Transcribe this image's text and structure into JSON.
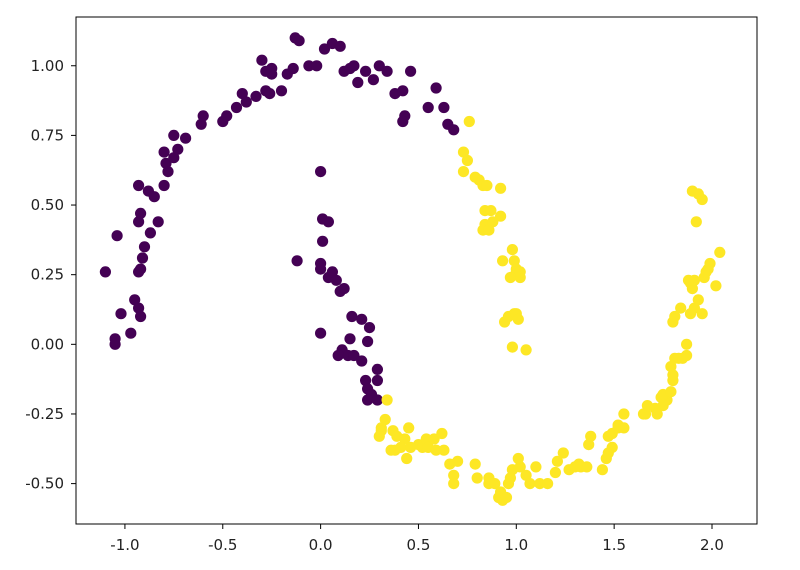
{
  "chart_data": {
    "type": "scatter",
    "title": "",
    "xlabel": "",
    "ylabel": "",
    "xlim": [
      -1.25,
      2.23
    ],
    "ylim": [
      -0.645,
      1.175
    ],
    "x_ticks": [
      -1.0,
      -0.5,
      0.0,
      0.5,
      1.0,
      1.5,
      2.0
    ],
    "x_tick_labels": [
      "-1.0",
      "-0.5",
      "0.0",
      "0.5",
      "1.0",
      "1.5",
      "2.0"
    ],
    "y_ticks": [
      -0.5,
      -0.25,
      0.0,
      0.25,
      0.5,
      0.75,
      1.0
    ],
    "y_tick_labels": [
      "-0.50",
      "-0.25",
      "0.00",
      "0.25",
      "0.50",
      "0.75",
      "1.00"
    ],
    "grid": false,
    "legend": "none",
    "colors": {
      "class0": "#440154",
      "class1": "#fde725"
    },
    "series": [
      {
        "color": "#440154",
        "points": [
          [
            -1.1,
            0.26
          ],
          [
            -1.04,
            0.39
          ],
          [
            -1.05,
            0.02
          ],
          [
            -1.05,
            0.0
          ],
          [
            -1.02,
            0.11
          ],
          [
            -0.97,
            0.04
          ],
          [
            -0.95,
            0.16
          ],
          [
            -0.93,
            0.13
          ],
          [
            -0.92,
            0.1
          ],
          [
            -0.93,
            0.26
          ],
          [
            -0.92,
            0.27
          ],
          [
            -0.91,
            0.31
          ],
          [
            -0.9,
            0.35
          ],
          [
            -0.93,
            0.44
          ],
          [
            -0.92,
            0.47
          ],
          [
            -0.87,
            0.4
          ],
          [
            -0.83,
            0.44
          ],
          [
            -0.93,
            0.57
          ],
          [
            -0.88,
            0.55
          ],
          [
            -0.85,
            0.53
          ],
          [
            -0.8,
            0.57
          ],
          [
            -0.78,
            0.62
          ],
          [
            -0.79,
            0.65
          ],
          [
            -0.8,
            0.69
          ],
          [
            -0.75,
            0.67
          ],
          [
            -0.73,
            0.7
          ],
          [
            -0.75,
            0.75
          ],
          [
            -0.69,
            0.74
          ],
          [
            -0.61,
            0.79
          ],
          [
            -0.6,
            0.82
          ],
          [
            -0.5,
            0.8
          ],
          [
            -0.48,
            0.82
          ],
          [
            -0.43,
            0.85
          ],
          [
            -0.4,
            0.9
          ],
          [
            -0.38,
            0.87
          ],
          [
            -0.33,
            0.89
          ],
          [
            -0.28,
            0.91
          ],
          [
            -0.26,
            0.9
          ],
          [
            -0.25,
            0.97
          ],
          [
            -0.3,
            1.02
          ],
          [
            -0.28,
            0.98
          ],
          [
            -0.25,
            0.99
          ],
          [
            -0.2,
            0.91
          ],
          [
            -0.17,
            0.97
          ],
          [
            -0.14,
            0.99
          ],
          [
            -0.13,
            1.1
          ],
          [
            -0.11,
            1.09
          ],
          [
            -0.06,
            1.0
          ],
          [
            -0.02,
            1.0
          ],
          [
            0.02,
            1.06
          ],
          [
            0.06,
            1.08
          ],
          [
            0.1,
            1.07
          ],
          [
            0.12,
            0.98
          ],
          [
            0.15,
            0.99
          ],
          [
            0.17,
            1.0
          ],
          [
            0.19,
            0.94
          ],
          [
            0.23,
            0.98
          ],
          [
            0.27,
            0.95
          ],
          [
            0.3,
            1.0
          ],
          [
            0.34,
            0.98
          ],
          [
            0.38,
            0.9
          ],
          [
            0.42,
            0.91
          ],
          [
            0.46,
            0.98
          ],
          [
            0.55,
            0.85
          ],
          [
            0.59,
            0.92
          ],
          [
            0.63,
            0.85
          ],
          [
            0.65,
            0.79
          ],
          [
            0.68,
            0.77
          ],
          [
            0.43,
            0.82
          ],
          [
            0.42,
            0.8
          ],
          [
            -0.12,
            0.3
          ],
          [
            0.0,
            0.62
          ],
          [
            0.01,
            0.45
          ],
          [
            0.04,
            0.44
          ],
          [
            0.01,
            0.37
          ],
          [
            0.0,
            0.27
          ],
          [
            0.04,
            0.24
          ],
          [
            0.0,
            0.29
          ],
          [
            0.06,
            0.26
          ],
          [
            0.08,
            0.23
          ],
          [
            0.1,
            0.19
          ],
          [
            0.12,
            0.2
          ],
          [
            0.16,
            0.1
          ],
          [
            0.21,
            0.09
          ],
          [
            0.25,
            0.06
          ],
          [
            0.24,
            0.01
          ],
          [
            0.15,
            0.02
          ],
          [
            0.11,
            -0.02
          ],
          [
            0.14,
            -0.04
          ],
          [
            0.09,
            -0.04
          ],
          [
            0.17,
            -0.04
          ],
          [
            0.21,
            -0.06
          ],
          [
            0.29,
            -0.09
          ],
          [
            0.29,
            -0.13
          ],
          [
            0.23,
            -0.13
          ],
          [
            0.24,
            -0.16
          ],
          [
            0.26,
            -0.18
          ],
          [
            0.24,
            -0.2
          ],
          [
            0.29,
            -0.2
          ],
          [
            0.0,
            0.04
          ]
        ]
      },
      {
        "color": "#fde725",
        "points": [
          [
            0.76,
            0.8
          ],
          [
            0.73,
            0.69
          ],
          [
            0.75,
            0.66
          ],
          [
            0.73,
            0.62
          ],
          [
            0.79,
            0.6
          ],
          [
            0.81,
            0.59
          ],
          [
            0.83,
            0.57
          ],
          [
            0.85,
            0.57
          ],
          [
            0.92,
            0.56
          ],
          [
            0.84,
            0.48
          ],
          [
            0.87,
            0.48
          ],
          [
            0.92,
            0.46
          ],
          [
            0.84,
            0.43
          ],
          [
            0.83,
            0.41
          ],
          [
            0.86,
            0.41
          ],
          [
            0.88,
            0.44
          ],
          [
            0.98,
            0.34
          ],
          [
            0.93,
            0.3
          ],
          [
            0.99,
            0.3
          ],
          [
            1.0,
            0.27
          ],
          [
            1.0,
            0.26
          ],
          [
            1.02,
            0.24
          ],
          [
            0.97,
            0.24
          ],
          [
            1.02,
            0.26
          ],
          [
            0.96,
            0.1
          ],
          [
            0.99,
            0.11
          ],
          [
            1.0,
            0.11
          ],
          [
            1.01,
            0.09
          ],
          [
            0.94,
            0.08
          ],
          [
            0.98,
            -0.01
          ],
          [
            1.05,
            -0.02
          ],
          [
            0.34,
            -0.2
          ],
          [
            0.33,
            -0.27
          ],
          [
            0.31,
            -0.3
          ],
          [
            0.31,
            -0.31
          ],
          [
            0.3,
            -0.33
          ],
          [
            0.37,
            -0.31
          ],
          [
            0.39,
            -0.33
          ],
          [
            0.45,
            -0.3
          ],
          [
            0.43,
            -0.34
          ],
          [
            0.41,
            -0.37
          ],
          [
            0.36,
            -0.38
          ],
          [
            0.38,
            -0.38
          ],
          [
            0.5,
            -0.36
          ],
          [
            0.52,
            -0.37
          ],
          [
            0.54,
            -0.34
          ],
          [
            0.55,
            -0.37
          ],
          [
            0.58,
            -0.34
          ],
          [
            0.62,
            -0.32
          ],
          [
            0.59,
            -0.38
          ],
          [
            0.63,
            -0.38
          ],
          [
            0.66,
            -0.43
          ],
          [
            0.7,
            -0.42
          ],
          [
            0.68,
            -0.47
          ],
          [
            0.68,
            -0.5
          ],
          [
            0.79,
            -0.43
          ],
          [
            0.8,
            -0.48
          ],
          [
            0.86,
            -0.48
          ],
          [
            0.86,
            -0.5
          ],
          [
            0.89,
            -0.5
          ],
          [
            0.92,
            -0.53
          ],
          [
            0.91,
            -0.55
          ],
          [
            0.93,
            -0.56
          ],
          [
            0.95,
            -0.55
          ],
          [
            0.96,
            -0.5
          ],
          [
            0.97,
            -0.48
          ],
          [
            0.98,
            -0.45
          ],
          [
            1.02,
            -0.44
          ],
          [
            1.01,
            -0.41
          ],
          [
            1.05,
            -0.47
          ],
          [
            1.07,
            -0.5
          ],
          [
            1.1,
            -0.44
          ],
          [
            1.12,
            -0.5
          ],
          [
            1.16,
            -0.5
          ],
          [
            1.2,
            -0.46
          ],
          [
            1.21,
            -0.42
          ],
          [
            1.24,
            -0.39
          ],
          [
            1.27,
            -0.45
          ],
          [
            1.3,
            -0.44
          ],
          [
            1.32,
            -0.43
          ],
          [
            1.33,
            -0.44
          ],
          [
            1.36,
            -0.44
          ],
          [
            1.37,
            -0.36
          ],
          [
            1.38,
            -0.33
          ],
          [
            1.44,
            -0.45
          ],
          [
            1.46,
            -0.41
          ],
          [
            1.47,
            -0.39
          ],
          [
            1.49,
            -0.37
          ],
          [
            1.47,
            -0.33
          ],
          [
            1.49,
            -0.32
          ],
          [
            1.52,
            -0.3
          ],
          [
            1.52,
            -0.29
          ],
          [
            1.55,
            -0.25
          ],
          [
            1.55,
            -0.3
          ],
          [
            1.65,
            -0.25
          ],
          [
            1.66,
            -0.25
          ],
          [
            1.67,
            -0.22
          ],
          [
            1.71,
            -0.23
          ],
          [
            1.72,
            -0.25
          ],
          [
            1.75,
            -0.22
          ],
          [
            1.77,
            -0.2
          ],
          [
            1.74,
            -0.19
          ],
          [
            1.75,
            -0.18
          ],
          [
            1.79,
            -0.17
          ],
          [
            1.8,
            -0.13
          ],
          [
            1.8,
            -0.11
          ],
          [
            1.79,
            -0.08
          ],
          [
            1.81,
            -0.05
          ],
          [
            1.83,
            -0.05
          ],
          [
            1.85,
            -0.05
          ],
          [
            1.87,
            -0.04
          ],
          [
            1.87,
            0.0
          ],
          [
            1.8,
            0.08
          ],
          [
            1.81,
            0.1
          ],
          [
            1.84,
            0.13
          ],
          [
            1.89,
            0.11
          ],
          [
            1.91,
            0.13
          ],
          [
            1.95,
            0.11
          ],
          [
            1.93,
            0.16
          ],
          [
            1.9,
            0.2
          ],
          [
            1.89,
            0.22
          ],
          [
            1.91,
            0.23
          ],
          [
            1.96,
            0.24
          ],
          [
            1.97,
            0.26
          ],
          [
            1.98,
            0.27
          ],
          [
            2.02,
            0.21
          ],
          [
            1.99,
            0.29
          ],
          [
            2.04,
            0.33
          ],
          [
            1.9,
            0.55
          ],
          [
            1.93,
            0.54
          ],
          [
            1.95,
            0.52
          ],
          [
            1.92,
            0.44
          ],
          [
            1.88,
            0.23
          ],
          [
            0.46,
            -0.37
          ],
          [
            0.44,
            -0.41
          ]
        ]
      }
    ]
  }
}
